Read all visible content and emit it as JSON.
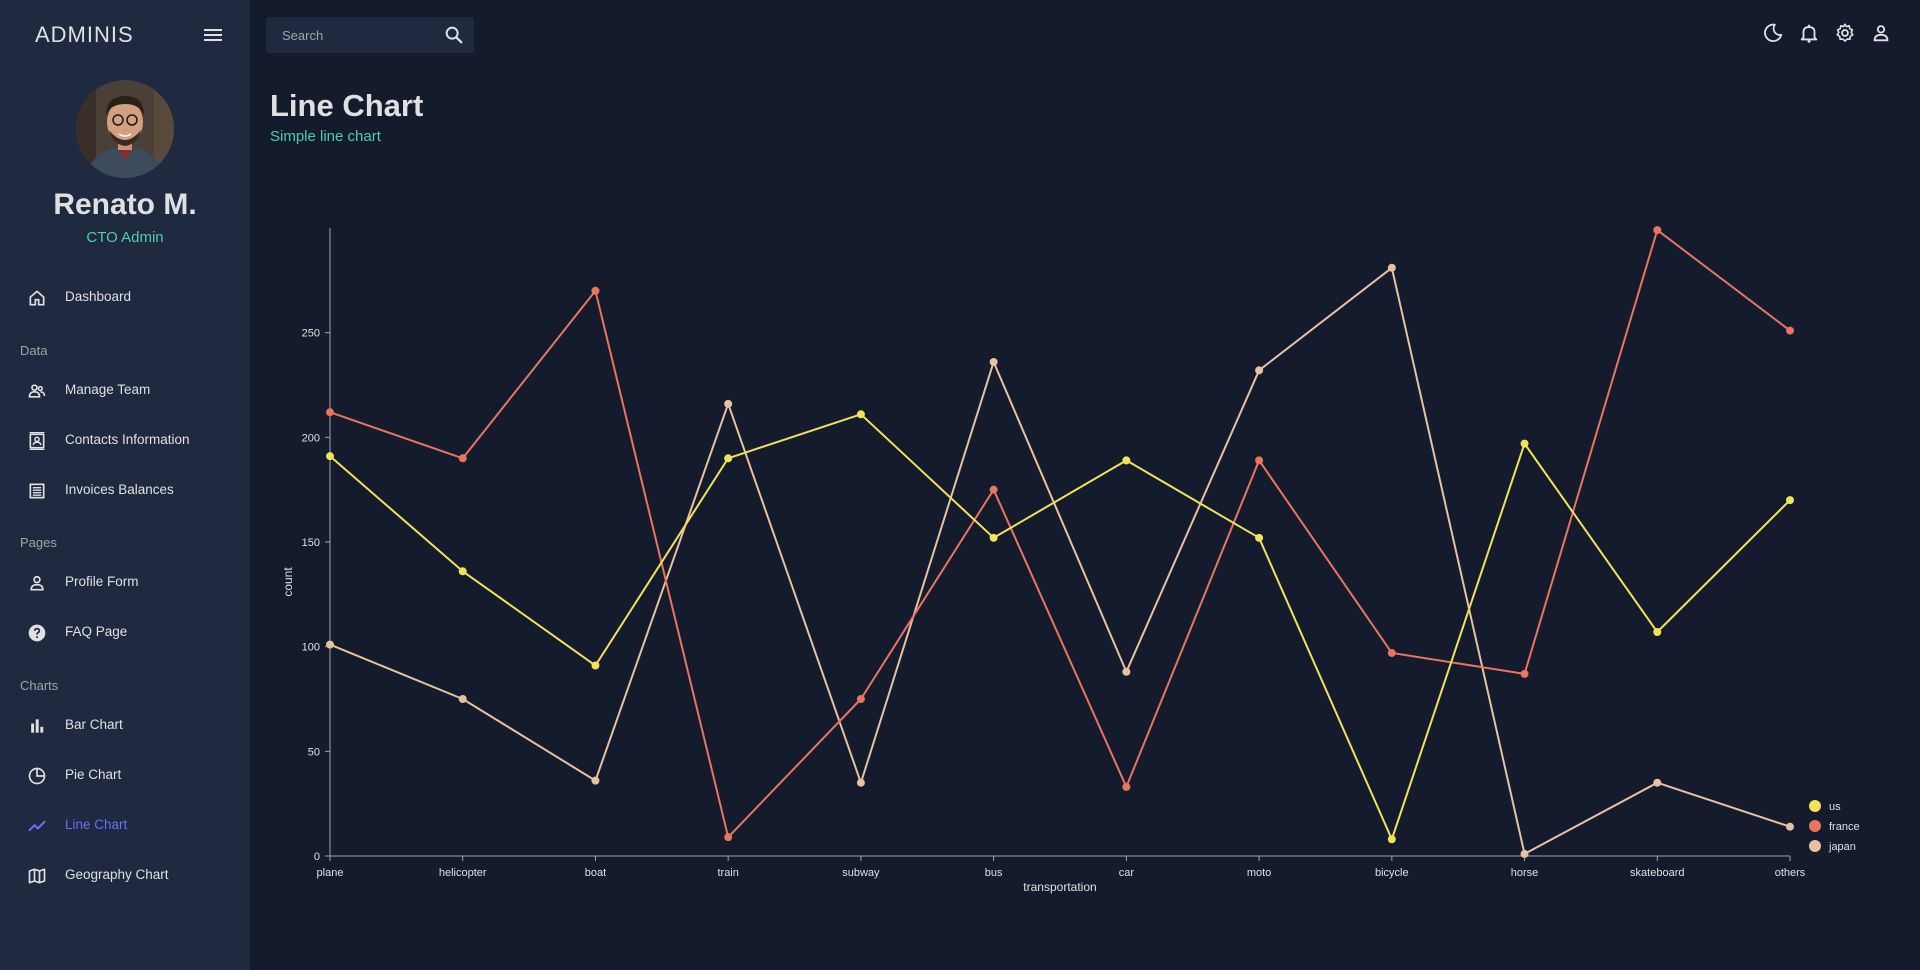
{
  "sidebar": {
    "brand": "ADMINIS",
    "user": {
      "name": "Renato M.",
      "role": "CTO Admin"
    },
    "items": [
      {
        "key": "dashboard",
        "label": "Dashboard"
      },
      {
        "key": "manage-team",
        "label": "Manage Team"
      },
      {
        "key": "contacts",
        "label": "Contacts Information"
      },
      {
        "key": "invoices",
        "label": "Invoices Balances"
      },
      {
        "key": "profile-form",
        "label": "Profile Form"
      },
      {
        "key": "faq",
        "label": "FAQ Page"
      },
      {
        "key": "bar-chart",
        "label": "Bar Chart"
      },
      {
        "key": "pie-chart",
        "label": "Pie Chart"
      },
      {
        "key": "line-chart",
        "label": "Line Chart",
        "active": true
      },
      {
        "key": "geography",
        "label": "Geography Chart"
      }
    ],
    "sections": {
      "data": "Data",
      "pages": "Pages",
      "charts": "Charts"
    }
  },
  "topbar": {
    "search_placeholder": "Search",
    "icons": [
      "moon-icon",
      "bell-icon",
      "gear-icon",
      "person-icon"
    ]
  },
  "header": {
    "title": "Line Chart",
    "subtitle": "Simple line chart"
  },
  "colors": {
    "background": "#141b2d",
    "panel": "#1f2a40",
    "accent_green": "#4cceac",
    "accent_active": "#6870fa",
    "us": "#f1e15b",
    "france": "#e8755f",
    "japan": "#e8c1a0"
  },
  "chart_data": {
    "type": "line",
    "xlabel": "transportation",
    "ylabel": "count",
    "categories": [
      "plane",
      "helicopter",
      "boat",
      "train",
      "subway",
      "bus",
      "car",
      "moto",
      "bicycle",
      "horse",
      "skateboard",
      "others"
    ],
    "ylim": [
      0,
      300
    ],
    "yticks": [
      0,
      50,
      100,
      150,
      200,
      250
    ],
    "legend_position": "bottom-right",
    "series": [
      {
        "name": "us",
        "color": "#f1e15b",
        "values": [
          191,
          136,
          91,
          190,
          211,
          152,
          189,
          152,
          8,
          197,
          107,
          170
        ]
      },
      {
        "name": "france",
        "color": "#e8755f",
        "values": [
          212,
          190,
          270,
          9,
          75,
          175,
          33,
          189,
          97,
          87,
          299,
          251
        ]
      },
      {
        "name": "japan",
        "color": "#e8c1a0",
        "values": [
          101,
          75,
          36,
          216,
          35,
          236,
          88,
          232,
          281,
          1,
          35,
          14
        ]
      }
    ]
  }
}
